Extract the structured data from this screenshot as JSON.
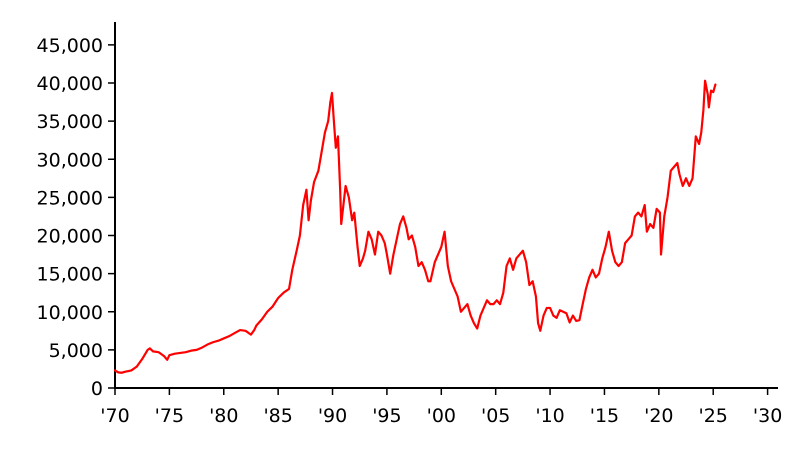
{
  "chart_data": {
    "type": "line",
    "title": "",
    "xlabel": "",
    "ylabel": "",
    "xlim": [
      1970,
      2030
    ],
    "ylim": [
      0,
      48000
    ],
    "grid": false,
    "legend": "none",
    "x_ticks": [
      {
        "value": 1970,
        "label": "'70"
      },
      {
        "value": 1975,
        "label": "'75"
      },
      {
        "value": 1980,
        "label": "'80"
      },
      {
        "value": 1985,
        "label": "'85"
      },
      {
        "value": 1990,
        "label": "'90"
      },
      {
        "value": 1995,
        "label": "'95"
      },
      {
        "value": 2000,
        "label": "'00"
      },
      {
        "value": 2005,
        "label": "'05"
      },
      {
        "value": 2010,
        "label": "'10"
      },
      {
        "value": 2015,
        "label": "'15"
      },
      {
        "value": 2020,
        "label": "'20"
      },
      {
        "value": 2025,
        "label": "'25"
      },
      {
        "value": 2030,
        "label": "'30"
      }
    ],
    "y_ticks": [
      {
        "value": 0,
        "label": "0"
      },
      {
        "value": 5000,
        "label": "5,000"
      },
      {
        "value": 10000,
        "label": "10,000"
      },
      {
        "value": 15000,
        "label": "15,000"
      },
      {
        "value": 20000,
        "label": "20,000"
      },
      {
        "value": 25000,
        "label": "25,000"
      },
      {
        "value": 30000,
        "label": "30,000"
      },
      {
        "value": 35000,
        "label": "35,000"
      },
      {
        "value": 40000,
        "label": "40,000"
      },
      {
        "value": 45000,
        "label": "45,000"
      }
    ],
    "series": [
      {
        "color": "#ff0000",
        "points": [
          [
            1970.0,
            2300
          ],
          [
            1970.3,
            2050
          ],
          [
            1970.6,
            2000
          ],
          [
            1971.0,
            2150
          ],
          [
            1971.5,
            2300
          ],
          [
            1972.0,
            2800
          ],
          [
            1972.5,
            3800
          ],
          [
            1973.0,
            5000
          ],
          [
            1973.2,
            5200
          ],
          [
            1973.5,
            4800
          ],
          [
            1974.0,
            4700
          ],
          [
            1974.5,
            4200
          ],
          [
            1974.8,
            3700
          ],
          [
            1975.0,
            4300
          ],
          [
            1975.5,
            4500
          ],
          [
            1976.0,
            4600
          ],
          [
            1976.5,
            4700
          ],
          [
            1977.0,
            4900
          ],
          [
            1977.5,
            5000
          ],
          [
            1978.0,
            5300
          ],
          [
            1978.5,
            5700
          ],
          [
            1979.0,
            6000
          ],
          [
            1979.5,
            6200
          ],
          [
            1980.0,
            6500
          ],
          [
            1980.5,
            6800
          ],
          [
            1981.0,
            7200
          ],
          [
            1981.5,
            7600
          ],
          [
            1982.0,
            7500
          ],
          [
            1982.5,
            7000
          ],
          [
            1982.8,
            7600
          ],
          [
            1983.0,
            8200
          ],
          [
            1983.5,
            9000
          ],
          [
            1984.0,
            10000
          ],
          [
            1984.5,
            10700
          ],
          [
            1985.0,
            11800
          ],
          [
            1985.5,
            12500
          ],
          [
            1986.0,
            13000
          ],
          [
            1986.3,
            15500
          ],
          [
            1986.7,
            18000
          ],
          [
            1987.0,
            20000
          ],
          [
            1987.3,
            24000
          ],
          [
            1987.6,
            26000
          ],
          [
            1987.8,
            22000
          ],
          [
            1988.0,
            24500
          ],
          [
            1988.3,
            27000
          ],
          [
            1988.7,
            28500
          ],
          [
            1989.0,
            31000
          ],
          [
            1989.3,
            33500
          ],
          [
            1989.6,
            35000
          ],
          [
            1989.8,
            37500
          ],
          [
            1989.95,
            38700
          ],
          [
            1990.1,
            35500
          ],
          [
            1990.3,
            31500
          ],
          [
            1990.5,
            33000
          ],
          [
            1990.7,
            26000
          ],
          [
            1990.8,
            21500
          ],
          [
            1991.0,
            24000
          ],
          [
            1991.2,
            26500
          ],
          [
            1991.5,
            25000
          ],
          [
            1991.8,
            22000
          ],
          [
            1992.0,
            23000
          ],
          [
            1992.3,
            18500
          ],
          [
            1992.5,
            16000
          ],
          [
            1992.8,
            17000
          ],
          [
            1993.0,
            18000
          ],
          [
            1993.3,
            20500
          ],
          [
            1993.6,
            19500
          ],
          [
            1993.9,
            17500
          ],
          [
            1994.2,
            20500
          ],
          [
            1994.5,
            20000
          ],
          [
            1994.8,
            19000
          ],
          [
            1995.0,
            17500
          ],
          [
            1995.3,
            15000
          ],
          [
            1995.6,
            17500
          ],
          [
            1995.9,
            19500
          ],
          [
            1996.2,
            21500
          ],
          [
            1996.5,
            22500
          ],
          [
            1996.8,
            21000
          ],
          [
            1997.0,
            19500
          ],
          [
            1997.3,
            20000
          ],
          [
            1997.6,
            18500
          ],
          [
            1997.9,
            16000
          ],
          [
            1998.2,
            16500
          ],
          [
            1998.5,
            15500
          ],
          [
            1998.8,
            14000
          ],
          [
            1999.0,
            14000
          ],
          [
            1999.4,
            16500
          ],
          [
            1999.7,
            17500
          ],
          [
            2000.0,
            18500
          ],
          [
            2000.3,
            20500
          ],
          [
            2000.6,
            16000
          ],
          [
            2000.9,
            14000
          ],
          [
            2001.2,
            13000
          ],
          [
            2001.5,
            12000
          ],
          [
            2001.8,
            10000
          ],
          [
            2002.1,
            10500
          ],
          [
            2002.4,
            11000
          ],
          [
            2002.7,
            9500
          ],
          [
            2003.0,
            8500
          ],
          [
            2003.3,
            7800
          ],
          [
            2003.6,
            9500
          ],
          [
            2003.9,
            10500
          ],
          [
            2004.2,
            11500
          ],
          [
            2004.5,
            11000
          ],
          [
            2004.8,
            11000
          ],
          [
            2005.1,
            11500
          ],
          [
            2005.4,
            11000
          ],
          [
            2005.7,
            12500
          ],
          [
            2006.0,
            16000
          ],
          [
            2006.3,
            17000
          ],
          [
            2006.6,
            15500
          ],
          [
            2006.9,
            17000
          ],
          [
            2007.2,
            17500
          ],
          [
            2007.5,
            18000
          ],
          [
            2007.8,
            16500
          ],
          [
            2008.1,
            13500
          ],
          [
            2008.4,
            14000
          ],
          [
            2008.7,
            12000
          ],
          [
            2008.9,
            8500
          ],
          [
            2009.1,
            7500
          ],
          [
            2009.4,
            9500
          ],
          [
            2009.7,
            10500
          ],
          [
            2010.0,
            10500
          ],
          [
            2010.3,
            9500
          ],
          [
            2010.6,
            9200
          ],
          [
            2010.9,
            10200
          ],
          [
            2011.2,
            10000
          ],
          [
            2011.5,
            9800
          ],
          [
            2011.8,
            8600
          ],
          [
            2012.1,
            9500
          ],
          [
            2012.4,
            8800
          ],
          [
            2012.7,
            8900
          ],
          [
            2013.0,
            11000
          ],
          [
            2013.3,
            13000
          ],
          [
            2013.6,
            14500
          ],
          [
            2013.9,
            15500
          ],
          [
            2014.2,
            14500
          ],
          [
            2014.5,
            15000
          ],
          [
            2014.8,
            17000
          ],
          [
            2015.1,
            18500
          ],
          [
            2015.4,
            20500
          ],
          [
            2015.7,
            18000
          ],
          [
            2016.0,
            16500
          ],
          [
            2016.3,
            16000
          ],
          [
            2016.6,
            16500
          ],
          [
            2016.9,
            19000
          ],
          [
            2017.2,
            19500
          ],
          [
            2017.5,
            20000
          ],
          [
            2017.8,
            22500
          ],
          [
            2018.1,
            23000
          ],
          [
            2018.4,
            22500
          ],
          [
            2018.7,
            24000
          ],
          [
            2018.9,
            20500
          ],
          [
            2019.2,
            21500
          ],
          [
            2019.5,
            21000
          ],
          [
            2019.8,
            23500
          ],
          [
            2020.1,
            23000
          ],
          [
            2020.2,
            17500
          ],
          [
            2020.5,
            22500
          ],
          [
            2020.8,
            25000
          ],
          [
            2021.1,
            28500
          ],
          [
            2021.4,
            29000
          ],
          [
            2021.7,
            29500
          ],
          [
            2021.9,
            28000
          ],
          [
            2022.2,
            26500
          ],
          [
            2022.5,
            27500
          ],
          [
            2022.8,
            26500
          ],
          [
            2023.1,
            27500
          ],
          [
            2023.4,
            33000
          ],
          [
            2023.7,
            32000
          ],
          [
            2023.9,
            33500
          ],
          [
            2024.1,
            36500
          ],
          [
            2024.25,
            40300
          ],
          [
            2024.5,
            38500
          ],
          [
            2024.6,
            36800
          ],
          [
            2024.8,
            39000
          ],
          [
            2025.0,
            38800
          ],
          [
            2025.2,
            39800
          ]
        ]
      }
    ]
  }
}
